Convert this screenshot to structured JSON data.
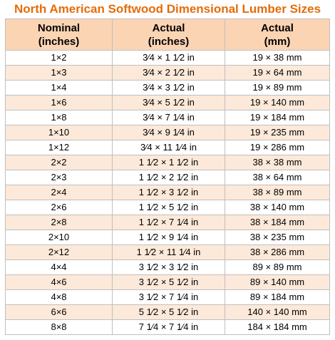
{
  "title": "North American Softwood Dimensional Lumber Sizes",
  "colors": {
    "title": "#e46c0a",
    "header_bg": "#fbd4b4",
    "row_alt_bg": "#fde9d9",
    "border": "#bfbfbf"
  },
  "headers": [
    {
      "line1": "Nominal",
      "line2": "(inches)"
    },
    {
      "line1": "Actual",
      "line2": "(inches)"
    },
    {
      "line1": "Actual",
      "line2": "(mm)"
    }
  ],
  "rows": [
    [
      "1×2",
      "3⁄4 × 1 1⁄2 in",
      "19 × 38 mm"
    ],
    [
      "1×3",
      "3⁄4 × 2 1⁄2 in",
      "19 × 64 mm"
    ],
    [
      "1×4",
      "3⁄4 × 3 1⁄2 in",
      "19 × 89 mm"
    ],
    [
      "1×6",
      "3⁄4 × 5 1⁄2 in",
      "19 × 140 mm"
    ],
    [
      "1×8",
      "3⁄4 × 7 1⁄4 in",
      "19 × 184 mm"
    ],
    [
      "1×10",
      "3⁄4 × 9 1⁄4 in",
      "19 × 235 mm"
    ],
    [
      "1×12",
      "3⁄4 × 11 1⁄4 in",
      "19 × 286 mm"
    ],
    [
      "2×2",
      "1 1⁄2 × 1 1⁄2 in",
      "38 × 38 mm"
    ],
    [
      "2×3",
      "1 1⁄2 × 2 1⁄2 in",
      "38 × 64 mm"
    ],
    [
      "2×4",
      "1 1⁄2 × 3 1⁄2 in",
      "38 × 89 mm"
    ],
    [
      "2×6",
      "1 1⁄2 × 5 1⁄2 in",
      "38 × 140 mm"
    ],
    [
      "2×8",
      "1 1⁄2 × 7 1⁄4 in",
      "38 × 184 mm"
    ],
    [
      "2×10",
      "1 1⁄2 × 9 1⁄4 in",
      "38 × 235 mm"
    ],
    [
      "2×12",
      "1 1⁄2 × 11 1⁄4 in",
      "38 × 286 mm"
    ],
    [
      "4×4",
      "3 1⁄2 × 3 1⁄2 in",
      "89 × 89 mm"
    ],
    [
      "4×6",
      "3 1⁄2 × 5 1⁄2 in",
      "89 × 140 mm"
    ],
    [
      "4×8",
      "3 1⁄2 × 7 1⁄4 in",
      "89 × 184 mm"
    ],
    [
      "6×6",
      "5 1⁄2 × 5 1⁄2 in",
      "140 × 140 mm"
    ],
    [
      "8×8",
      "7 1⁄4 × 7 1⁄4 in",
      "184 × 184 mm"
    ]
  ]
}
